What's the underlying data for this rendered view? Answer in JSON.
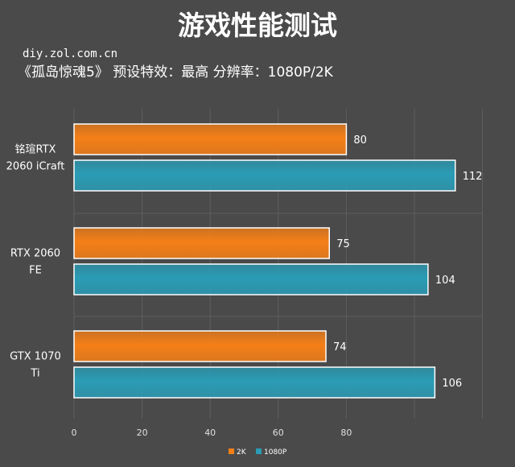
{
  "chart_data": {
    "type": "bar",
    "orientation": "horizontal",
    "title": "游戏性能测试",
    "source": "diy.zol.com.cn",
    "subtitle": "《孤岛惊魂5》  预设特效：最高  分辨率：1080P/2K",
    "categories": [
      [
        "铭瑄RTX",
        "2060 iCraft"
      ],
      [
        "RTX 2060",
        "FE"
      ],
      [
        "GTX 1070",
        "Ti"
      ]
    ],
    "series": [
      {
        "name": "2K",
        "values": [
          80,
          75,
          74
        ],
        "color": "#f57f17"
      },
      {
        "name": "1080P",
        "values": [
          112,
          104,
          106
        ],
        "color": "#2a9cb5"
      }
    ],
    "x_ticks": [
      "0",
      "20",
      "40",
      "60",
      "80"
    ],
    "xlim": [
      0,
      124
    ],
    "grid": true,
    "legend_position": "bottom-center"
  }
}
